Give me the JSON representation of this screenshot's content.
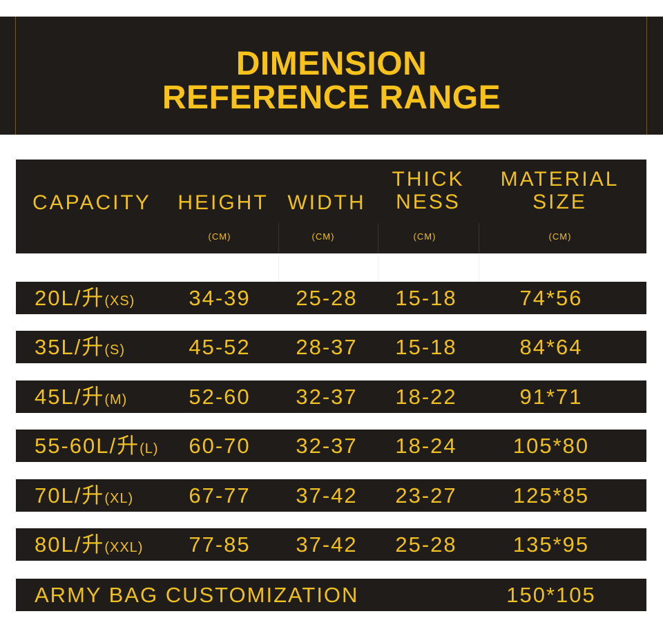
{
  "banner": {
    "title_line1": "DIMENSION",
    "title_line2": "REFERENCE RANGE"
  },
  "header": {
    "capacity": "CAPACITY",
    "height": "HEIGHT",
    "width": "WIDTH",
    "thickness_line1": "THICK",
    "thickness_line2": "NESS",
    "material_line1": "MATERIAL",
    "material_line2": "SIZE",
    "unit": "(CM)"
  },
  "rows": [
    {
      "capacity": "20L/升",
      "size": "(XS)",
      "height": "34-39",
      "width": "25-28",
      "thickness": "15-18",
      "material": "74*56"
    },
    {
      "capacity": "35L/升",
      "size": "(S)",
      "height": "45-52",
      "width": "28-37",
      "thickness": "15-18",
      "material": "84*64"
    },
    {
      "capacity": "45L/升",
      "size": "(M)",
      "height": "52-60",
      "width": "32-37",
      "thickness": "18-22",
      "material": "91*71"
    },
    {
      "capacity": "55-60L/升",
      "size": "(L)",
      "height": "60-70",
      "width": "32-37",
      "thickness": "18-24",
      "material": "105*80"
    },
    {
      "capacity": "70L/升",
      "size": "(XL)",
      "height": "67-77",
      "width": "37-42",
      "thickness": "23-27",
      "material": "125*85"
    },
    {
      "capacity": "80L/升",
      "size": "(XXL)",
      "height": "77-85",
      "width": "37-42",
      "thickness": "25-28",
      "material": "135*95"
    }
  ],
  "custom": {
    "label": "ARMY BAG CUSTOMIZATION",
    "material": "150*105"
  },
  "colors": {
    "background": "#ffffff",
    "panel": "#1f1c19",
    "accent": "#f7c21b"
  }
}
